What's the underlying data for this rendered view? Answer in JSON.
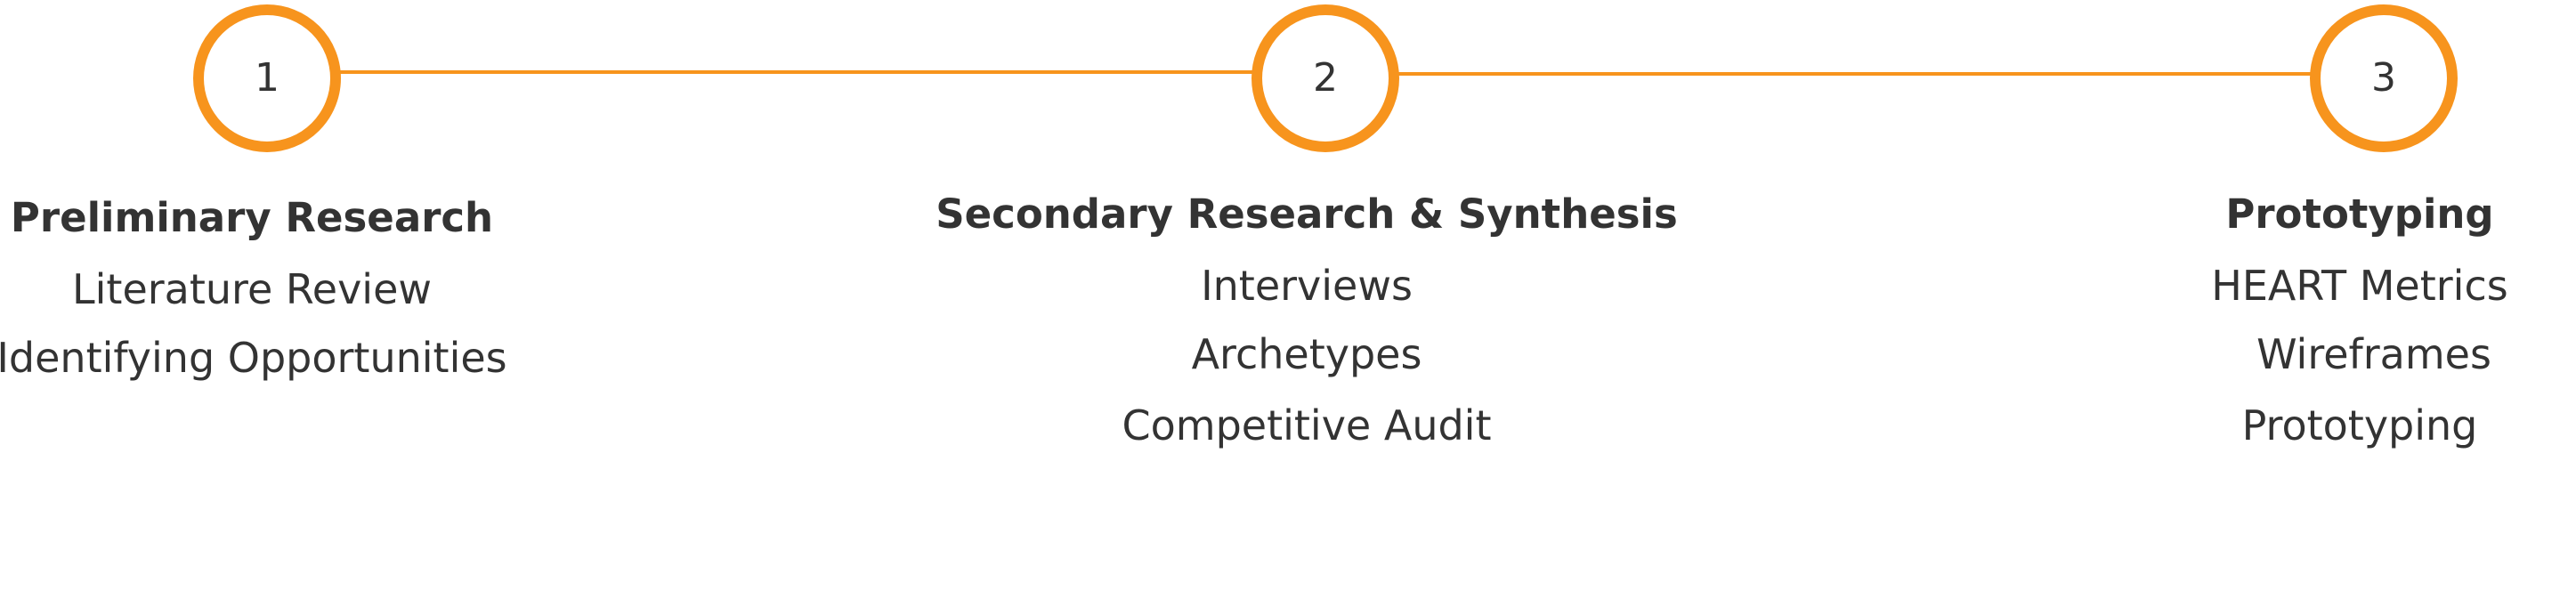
{
  "accent_color": "#F7941D",
  "steps": [
    {
      "number": "1",
      "title": "Preliminary Research",
      "items": [
        "Literature Review",
        "Identifying Opportunities"
      ]
    },
    {
      "number": "2",
      "title": "Secondary Research & Synthesis",
      "items": [
        "Interviews",
        "Archetypes",
        "Competitive Audit"
      ]
    },
    {
      "number": "3",
      "title": "Prototyping",
      "items": [
        "HEART Metrics",
        "Wireframes",
        "Prototyping"
      ]
    }
  ]
}
